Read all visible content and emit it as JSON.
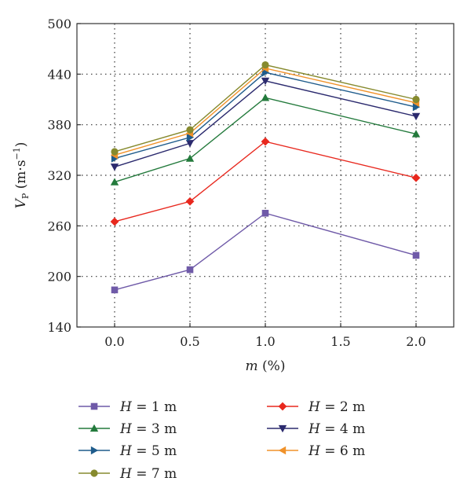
{
  "chart_data": {
    "type": "line",
    "x": [
      0.0,
      0.5,
      1.0,
      2.0
    ],
    "xlim": [
      -0.25,
      2.25
    ],
    "ylim": [
      140,
      500
    ],
    "xticks": [
      "0.0",
      "0.5",
      "1.0",
      "1.5",
      "2.0"
    ],
    "xtick_values": [
      0.0,
      0.5,
      1.0,
      1.5,
      2.0
    ],
    "yticks": [
      "140",
      "200",
      "260",
      "320",
      "380",
      "440",
      "500"
    ],
    "ytick_values": [
      140,
      200,
      260,
      320,
      380,
      440,
      500
    ],
    "xlabel": {
      "var": "m",
      "rest": " (%)"
    },
    "ylabel": {
      "var": "V",
      "sub": "P",
      "units": " (m·s",
      "sup": "−1",
      "close": ")"
    },
    "grid": true,
    "legend_placement": "bottom",
    "series": [
      {
        "name": "H = 1 m",
        "label_var": "H",
        "label_rest": " = 1 m",
        "color": "#6f5aa8",
        "marker": "square",
        "values": [
          184,
          208,
          275,
          225
        ]
      },
      {
        "name": "H = 2 m",
        "label_var": "H",
        "label_rest": " = 2 m",
        "color": "#e8281e",
        "marker": "diamond",
        "values": [
          265,
          289,
          360,
          317
        ]
      },
      {
        "name": "H = 3 m",
        "label_var": "H",
        "label_rest": " = 3 m",
        "color": "#237a3c",
        "marker": "triangle-up",
        "values": [
          312,
          340,
          412,
          369
        ]
      },
      {
        "name": "H = 4 m",
        "label_var": "H",
        "label_rest": " = 4 m",
        "color": "#2b2a6e",
        "marker": "triangle-down",
        "values": [
          330,
          358,
          432,
          390
        ]
      },
      {
        "name": "H = 5 m",
        "label_var": "H",
        "label_rest": " = 5 m",
        "color": "#1f5c8c",
        "marker": "triangle-right",
        "values": [
          340,
          365,
          442,
          401
        ]
      },
      {
        "name": "H = 6 m",
        "label_var": "H",
        "label_rest": " = 6 m",
        "color": "#f0922a",
        "marker": "triangle-left",
        "values": [
          344,
          370,
          447,
          406
        ]
      },
      {
        "name": "H = 7 m",
        "label_var": "H",
        "label_rest": " = 7 m",
        "color": "#868a2e",
        "marker": "circle",
        "values": [
          348,
          374,
          451,
          410
        ]
      }
    ]
  }
}
